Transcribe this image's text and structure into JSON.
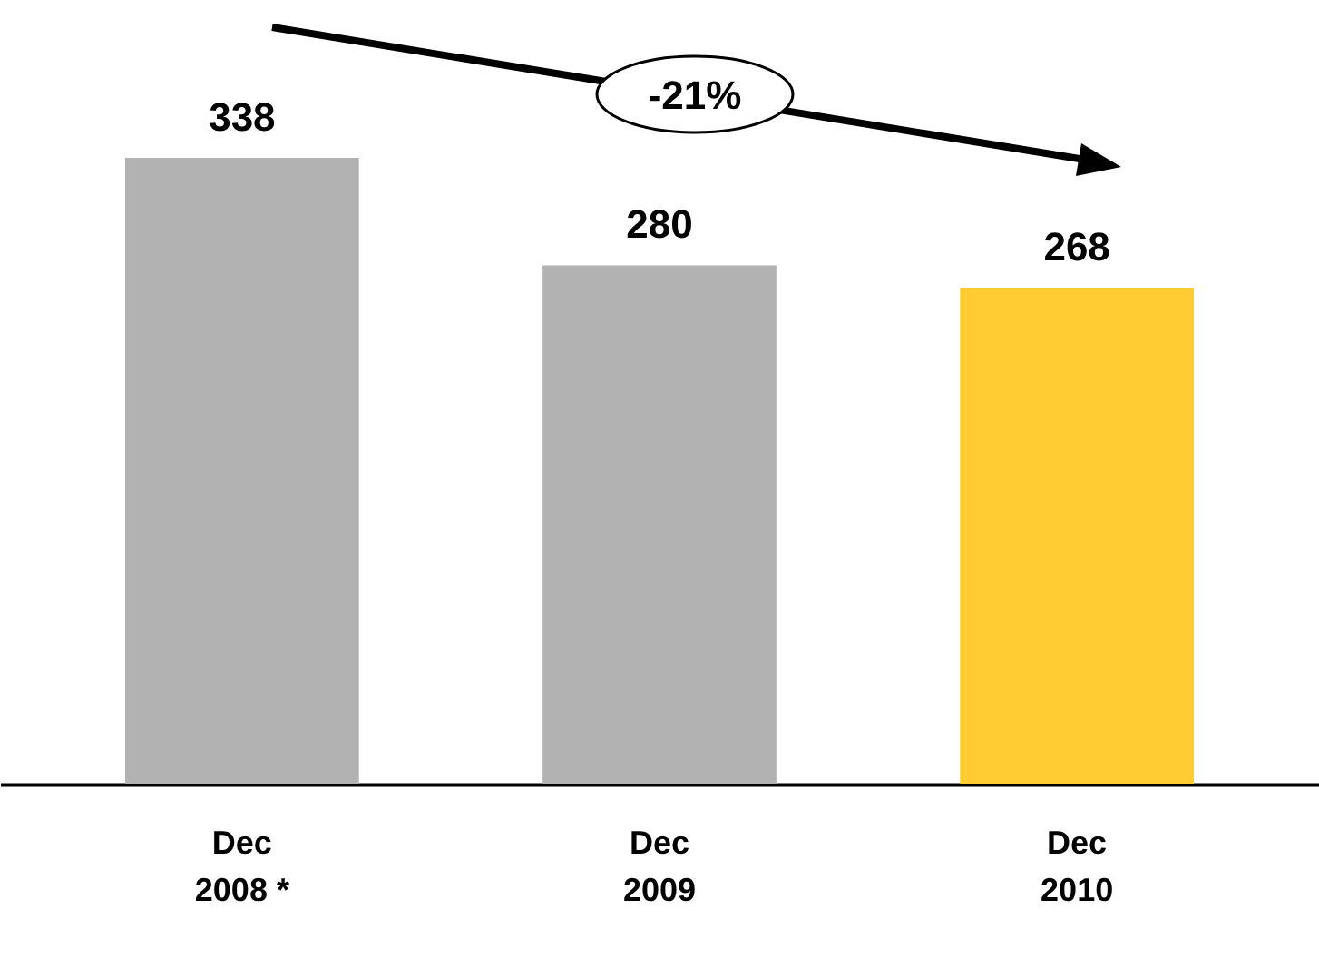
{
  "chart_data": {
    "type": "bar",
    "categories": [
      "Dec\n2008 *",
      "Dec\n2009",
      "Dec\n2010"
    ],
    "values": [
      338,
      280,
      268
    ],
    "colors": [
      "#b2b2b2",
      "#b2b2b2",
      "#ffcc33"
    ],
    "data_labels": true,
    "annotations": [
      "-21%"
    ]
  }
}
